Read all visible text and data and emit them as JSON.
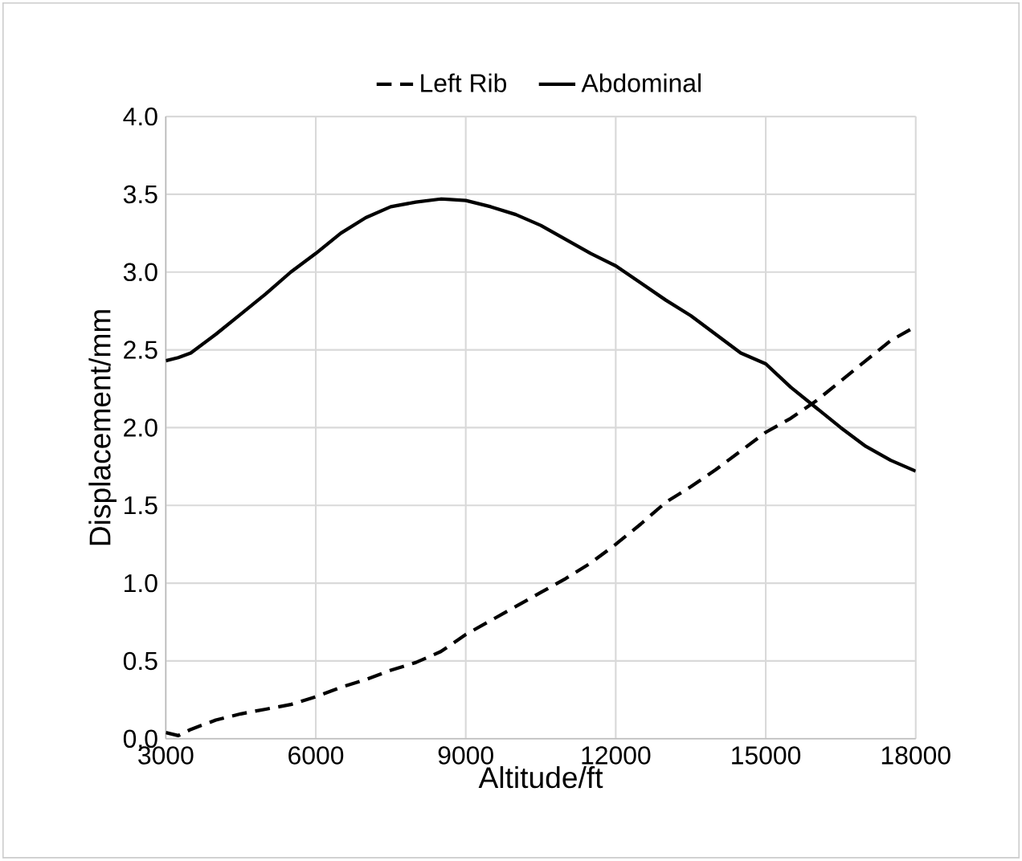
{
  "chart_data": {
    "type": "line",
    "xlabel": "Altitude/ft",
    "ylabel": "Displacement/mm",
    "x": [
      3000,
      3250,
      3500,
      4000,
      4500,
      5000,
      5500,
      6000,
      6500,
      7000,
      7500,
      8000,
      8500,
      9000,
      9500,
      10000,
      10500,
      11000,
      11500,
      12000,
      12500,
      13000,
      13500,
      14000,
      14500,
      15000,
      15500,
      16000,
      16500,
      17000,
      17500,
      18000
    ],
    "series": [
      {
        "name": "Left Rib",
        "color": "#000000",
        "line_style": "dashed",
        "values": [
          0.04,
          0.02,
          0.06,
          0.12,
          0.16,
          0.19,
          0.22,
          0.27,
          0.33,
          0.38,
          0.44,
          0.49,
          0.56,
          0.67,
          0.76,
          0.85,
          0.94,
          1.03,
          1.13,
          1.25,
          1.38,
          1.52,
          1.62,
          1.73,
          1.85,
          1.97,
          2.06,
          2.17,
          2.3,
          2.43,
          2.56,
          2.65
        ]
      },
      {
        "name": "Abdominal",
        "color": "#000000",
        "line_style": "solid",
        "values": [
          2.43,
          2.45,
          2.48,
          2.6,
          2.73,
          2.86,
          3.0,
          3.12,
          3.25,
          3.35,
          3.42,
          3.45,
          3.47,
          3.46,
          3.42,
          3.37,
          3.3,
          3.21,
          3.12,
          3.04,
          2.93,
          2.82,
          2.72,
          2.6,
          2.48,
          2.41,
          2.26,
          2.13,
          2.0,
          1.88,
          1.79,
          1.72
        ]
      }
    ],
    "xlim": [
      3000,
      18000
    ],
    "ylim": [
      0,
      4
    ],
    "xticks": [
      3000,
      6000,
      9000,
      12000,
      15000,
      18000
    ],
    "yticks": [
      {
        "value": 0,
        "label": "0.0"
      },
      {
        "value": 0.5,
        "label": "0.5"
      },
      {
        "value": 1,
        "label": "1.0"
      },
      {
        "value": 1.5,
        "label": "1.5"
      },
      {
        "value": 2,
        "label": "2.0"
      },
      {
        "value": 2.5,
        "label": "2.5"
      },
      {
        "value": 3,
        "label": "3.0"
      },
      {
        "value": 3.5,
        "label": "3.5"
      },
      {
        "value": 4,
        "label": "4.0"
      }
    ],
    "grid": true,
    "legend": "top",
    "marker": "none"
  }
}
